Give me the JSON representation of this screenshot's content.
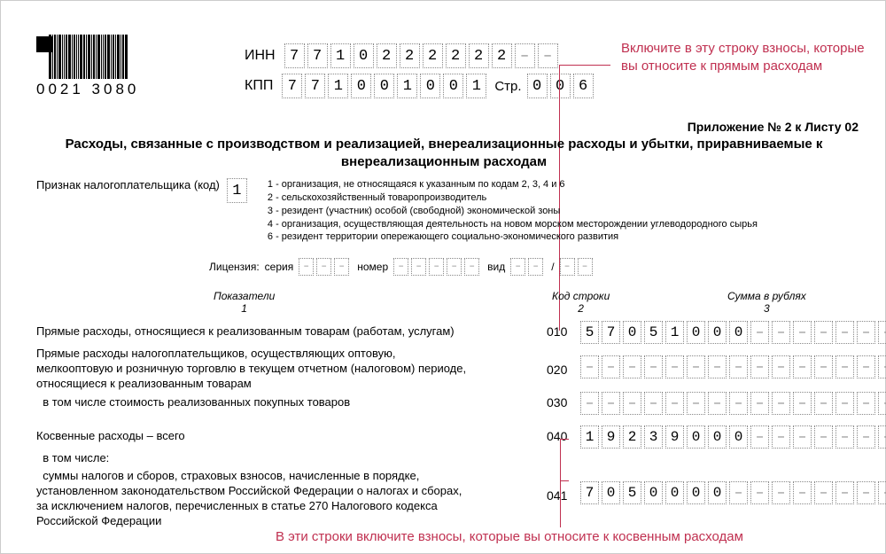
{
  "barcode_text": "0021 3080",
  "inn_label": "ИНН",
  "inn": [
    "7",
    "7",
    "1",
    "0",
    "2",
    "2",
    "2",
    "2",
    "2",
    "2",
    "–",
    "–"
  ],
  "kpp_label": "КПП",
  "kpp": [
    "7",
    "7",
    "1",
    "0",
    "0",
    "1",
    "0",
    "0",
    "1"
  ],
  "str_label": "Стр.",
  "str": [
    "0",
    "0",
    "6"
  ],
  "callout1": "Включите в эту строку взносы, которые вы относите к прямым расходам",
  "callout2": "В эти строки включите взносы, которые вы относите к косвенным расходам",
  "annex": "Приложение № 2 к Листу 02",
  "title": "Расходы, связанные с производством и реализацией, внереализационные расходы и убытки, приравниваемые к внереализационным расходам",
  "taxpayer_label": "Признак налогоплательщика (код)",
  "taxpayer_code": "1",
  "notes": [
    "1 - организация, не относящаяся к указанным по кодам 2, 3, 4 и 6",
    "2 - сельскохозяйственный товаропроизводитель",
    "3 - резидент (участник) особой (свободной) экономической зоны",
    "4 - организация, осуществляющая деятельность на новом морском месторождении углеводородного сырья",
    "6 - резидент территории опережающего социально-экономического развития"
  ],
  "license_label": "Лицензия:",
  "license_series": "серия",
  "license_number": "номер",
  "license_type": "вид",
  "colhdr": {
    "c1": "Показатели",
    "c1n": "1",
    "c2": "Код строки",
    "c2n": "2",
    "c3": "Сумма в рублях",
    "c3n": "3"
  },
  "rows": [
    {
      "desc": "Прямые расходы, относящиеся к реализованным товарам (работам, услугам)",
      "code": "010",
      "sum": [
        "5",
        "7",
        "0",
        "5",
        "1",
        "0",
        "0",
        "0",
        "–",
        "–",
        "–",
        "–",
        "–",
        "–",
        "–"
      ]
    },
    {
      "desc": "Прямые расходы налогоплательщиков, осуществляющих оптовую, мелкооптовую и розничную торговлю в текущем отчетном (налоговом) периоде, относящиеся к реализованным товарам",
      "code": "020",
      "sum": [
        "–",
        "–",
        "–",
        "–",
        "–",
        "–",
        "–",
        "–",
        "–",
        "–",
        "–",
        "–",
        "–",
        "–",
        "–"
      ]
    },
    {
      "desc": "  в том числе стоимость реализованных покупных товаров",
      "code": "030",
      "sum": [
        "–",
        "–",
        "–",
        "–",
        "–",
        "–",
        "–",
        "–",
        "–",
        "–",
        "–",
        "–",
        "–",
        "–",
        "–"
      ]
    },
    {
      "desc": "Косвенные расходы – всего",
      "code": "040",
      "sum": [
        "1",
        "9",
        "2",
        "3",
        "9",
        "0",
        "0",
        "0",
        "–",
        "–",
        "–",
        "–",
        "–",
        "–",
        "–"
      ]
    },
    {
      "desc": "  в том числе:",
      "code": "",
      "sum": null
    },
    {
      "desc": "  суммы налогов и сборов, страховых взносов, начисленные в порядке, установленном законодательством Российской Федерации о налогах и сборах, за исключением налогов, перечисленных в статье 270 Налогового кодекса Российской Федерации",
      "code": "041",
      "sum": [
        "7",
        "0",
        "5",
        "0",
        "0",
        "0",
        "0",
        "–",
        "–",
        "–",
        "–",
        "–",
        "–",
        "–",
        "–"
      ]
    }
  ]
}
